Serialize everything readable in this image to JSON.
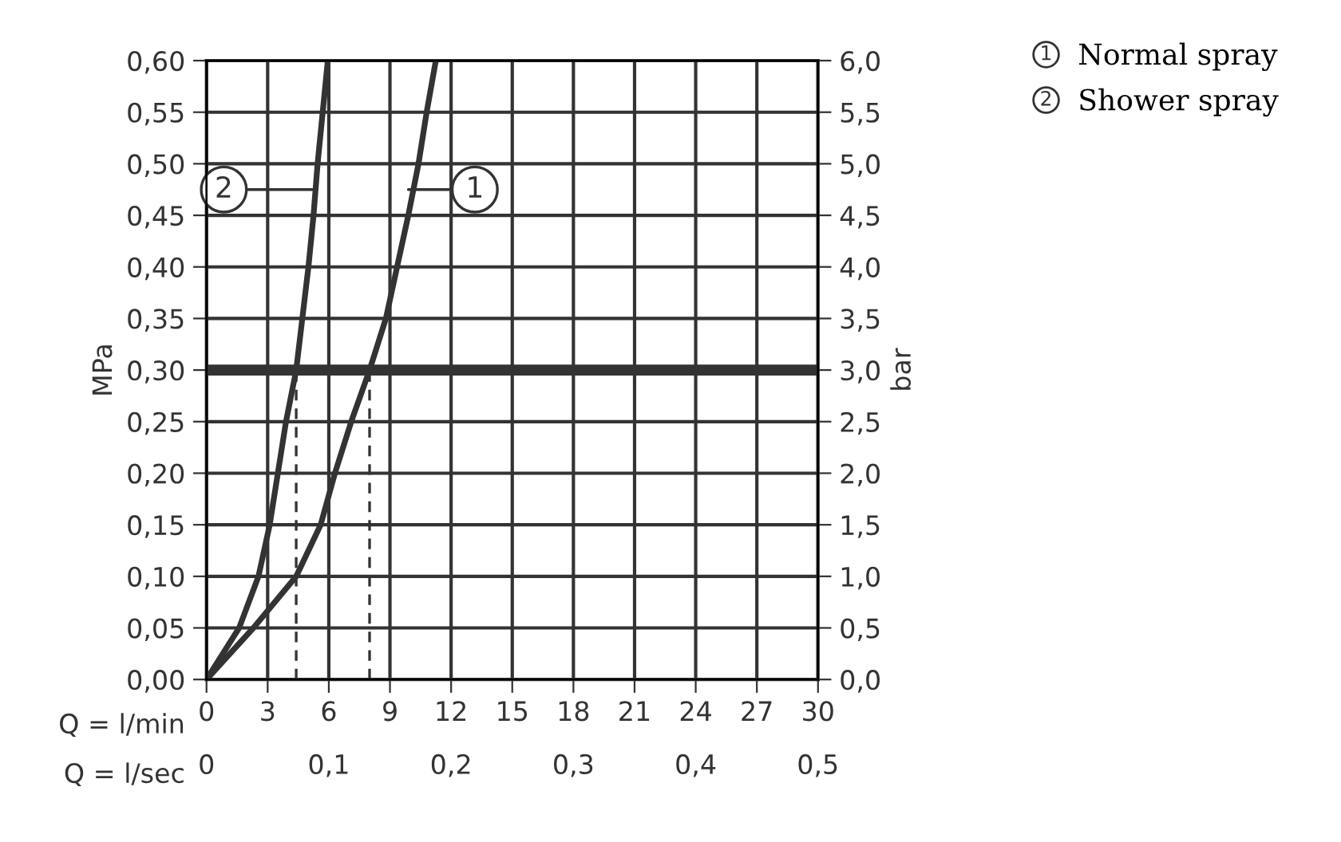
{
  "chart_data": {
    "type": "line",
    "ylabel": "MPa",
    "y2label": "bar",
    "xlabel": "Q = l/min",
    "x2label": "Q = l/sec",
    "xlim": [
      0,
      30
    ],
    "xticks": [
      0,
      3,
      6,
      9,
      12,
      15,
      18,
      21,
      24,
      27,
      30
    ],
    "x2lim": [
      0,
      0.5
    ],
    "x2ticks": [
      0,
      {
        "value": 0.1,
        "label": "0,1"
      },
      {
        "value": 0.2,
        "label": "0,2"
      },
      {
        "value": 0.3,
        "label": "0,3"
      },
      {
        "value": 0.4,
        "label": "0,4"
      },
      {
        "value": 0.5,
        "label": "0,5"
      }
    ],
    "ylim": [
      0,
      0.6
    ],
    "yticks": [
      {
        "value": 0,
        "label": "0,00"
      },
      {
        "value": 0.05,
        "label": "0,05"
      },
      {
        "value": 0.1,
        "label": "0,10"
      },
      {
        "value": 0.15,
        "label": "0,15"
      },
      {
        "value": 0.2,
        "label": "0,20"
      },
      {
        "value": 0.25,
        "label": "0,25"
      },
      {
        "value": 0.3,
        "label": "0,30"
      },
      {
        "value": 0.35,
        "label": "0,35"
      },
      {
        "value": 0.4,
        "label": "0,40"
      },
      {
        "value": 0.45,
        "label": "0,45"
      },
      {
        "value": 0.5,
        "label": "0,50"
      },
      {
        "value": 0.55,
        "label": "0,55"
      },
      {
        "value": 0.6,
        "label": "0,60"
      }
    ],
    "y2lim": [
      0,
      6
    ],
    "y2ticks": [
      {
        "value": 0,
        "label": "0,0"
      },
      {
        "value": 0.5,
        "label": "0,5"
      },
      {
        "value": 1,
        "label": "1,0"
      },
      {
        "value": 1.5,
        "label": "1,5"
      },
      {
        "value": 2,
        "label": "2,0"
      },
      {
        "value": 2.5,
        "label": "2,5"
      },
      {
        "value": 3,
        "label": "3,0"
      },
      {
        "value": 3.5,
        "label": "3,5"
      },
      {
        "value": 4,
        "label": "4,0"
      },
      {
        "value": 4.5,
        "label": "4,5"
      },
      {
        "value": 5,
        "label": "5,0"
      },
      {
        "value": 5.5,
        "label": "5,5"
      },
      {
        "value": 6,
        "label": "6,0"
      }
    ],
    "grid": true,
    "legend": "top right",
    "marker": "none",
    "series": [
      {
        "name": "Normal spray",
        "color": "#333333",
        "x": [
          0,
          2.3,
          4.4,
          5.6,
          6.3,
          7.1,
          8.0,
          8.8,
          9.35,
          9.9,
          10.4,
          10.8,
          11.25
        ],
        "values": [
          0,
          0.05,
          0.1,
          0.15,
          0.2,
          0.25,
          0.3,
          0.35,
          0.4,
          0.45,
          0.5,
          0.55,
          0.6
        ]
      },
      {
        "name": "Shower spray",
        "color": "#333333",
        "x": [
          0,
          1.6,
          2.55,
          3.1,
          3.5,
          3.9,
          4.4,
          4.7,
          5.0,
          5.25,
          5.45,
          5.7,
          5.95
        ],
        "values": [
          0,
          0.05,
          0.1,
          0.15,
          0.2,
          0.25,
          0.3,
          0.35,
          0.4,
          0.45,
          0.5,
          0.55,
          0.6
        ]
      },
      {
        "color": "#333333",
        "line_style": "dashed",
        "x": [
          4.4,
          4.4
        ],
        "values": [
          0,
          0.3
        ]
      },
      {
        "color": "#333333",
        "line_style": "dashed",
        "x": [
          8.0,
          8.0
        ],
        "values": [
          0,
          0.3
        ]
      }
    ],
    "ref_lines": [
      {
        "axis": "y",
        "value": 0.3,
        "color": "#333333"
      }
    ],
    "annotations": [
      {
        "text": "2",
        "x": 5.2,
        "y": 0.475
      },
      {
        "text": "1",
        "x": 9.9,
        "y": 0.475
      }
    ]
  }
}
